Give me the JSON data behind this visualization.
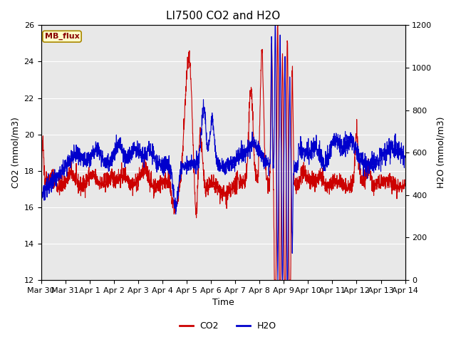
{
  "title": "LI7500 CO2 and H2O",
  "xlabel": "Time",
  "ylabel_left": "CO2 (mmol/m3)",
  "ylabel_right": "H2O (mmol/m3)",
  "ylim_left": [
    12,
    26
  ],
  "ylim_right": [
    0,
    1200
  ],
  "yticks_left": [
    12,
    14,
    16,
    18,
    20,
    22,
    24,
    26
  ],
  "yticks_right": [
    0,
    200,
    400,
    600,
    800,
    1000,
    1200
  ],
  "xtick_labels": [
    "Mar 30",
    "Mar 31",
    "Apr 1",
    "Apr 2",
    "Apr 3",
    "Apr 4",
    "Apr 5",
    "Apr 6",
    "Apr 7",
    "Apr 8",
    "Apr 9",
    "Apr 10",
    "Apr 11",
    "Apr 12",
    "Apr 13",
    "Apr 14"
  ],
  "annotation_text": "MB_flux",
  "annotation_bg": "#ffffcc",
  "annotation_border": "#aa8800",
  "co2_color": "#cc0000",
  "h2o_color": "#0000cc",
  "background_color": "#e8e8e8",
  "grid_color": "#ffffff",
  "linewidth": 0.8,
  "title_fontsize": 11,
  "axis_label_fontsize": 9,
  "tick_fontsize": 8,
  "legend_fontsize": 9,
  "n_days": 15
}
